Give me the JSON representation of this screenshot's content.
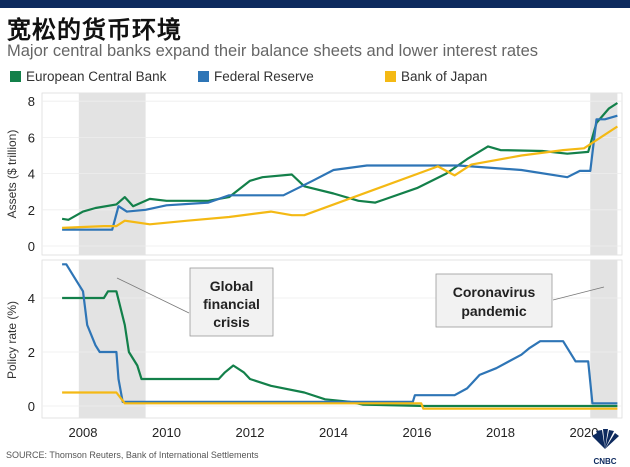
{
  "header": {
    "title": "宽松的货币环境",
    "subtitle": "Major central banks expand their balance sheets and lower interest rates"
  },
  "legend": [
    {
      "label": "European Central Bank",
      "color": "#13804a"
    },
    {
      "label": "Federal Reserve",
      "color": "#2e75b6"
    },
    {
      "label": "Bank of Japan",
      "color": "#f4b914"
    }
  ],
  "source": "SOURCE: Thomson Reuters, Bank of International Settlements",
  "logo": "CNBC",
  "chart_data": [
    {
      "type": "line",
      "ylabel": "Assets ($ trillion)",
      "ylim": [
        0,
        8
      ],
      "yticks": [
        "0",
        "2",
        "4",
        "6",
        "8"
      ],
      "xlim": [
        2007,
        2021
      ],
      "xticks": [
        "2008",
        "2010",
        "2012",
        "2014",
        "2016",
        "2018",
        "2020"
      ],
      "grid": true,
      "shaded_periods": [
        [
          2007.9,
          2009.5
        ],
        [
          2020.15,
          2020.8
        ]
      ],
      "series": [
        {
          "name": "European Central Bank",
          "color": "#13804a",
          "points": [
            [
              2007.5,
              1.5
            ],
            [
              2007.65,
              1.45
            ],
            [
              2008,
              1.9
            ],
            [
              2008.3,
              2.1
            ],
            [
              2008.8,
              2.3
            ],
            [
              2009,
              2.7
            ],
            [
              2009.2,
              2.2
            ],
            [
              2009.6,
              2.6
            ],
            [
              2010,
              2.5
            ],
            [
              2011,
              2.5
            ],
            [
              2011.5,
              2.7
            ],
            [
              2012,
              3.6
            ],
            [
              2012.3,
              3.8
            ],
            [
              2013,
              3.95
            ],
            [
              2013.3,
              3.3
            ],
            [
              2014,
              2.9
            ],
            [
              2014.6,
              2.5
            ],
            [
              2015,
              2.4
            ],
            [
              2016,
              3.2
            ],
            [
              2016.7,
              4.0
            ],
            [
              2017.2,
              4.8
            ],
            [
              2017.7,
              5.5
            ],
            [
              2018,
              5.3
            ],
            [
              2019,
              5.25
            ],
            [
              2019.6,
              5.1
            ],
            [
              2020.1,
              5.2
            ],
            [
              2020.3,
              6.8
            ],
            [
              2020.6,
              7.6
            ],
            [
              2020.8,
              7.9
            ]
          ]
        },
        {
          "name": "Federal Reserve",
          "color": "#2e75b6",
          "points": [
            [
              2007.5,
              0.9
            ],
            [
              2008.7,
              0.9
            ],
            [
              2008.85,
              2.2
            ],
            [
              2009.05,
              1.9
            ],
            [
              2009.5,
              2.0
            ],
            [
              2010,
              2.25
            ],
            [
              2011,
              2.4
            ],
            [
              2011.5,
              2.8
            ],
            [
              2012.8,
              2.8
            ],
            [
              2013.5,
              3.6
            ],
            [
              2014,
              4.2
            ],
            [
              2014.8,
              4.45
            ],
            [
              2017,
              4.45
            ],
            [
              2018.5,
              4.2
            ],
            [
              2019.6,
              3.8
            ],
            [
              2019.9,
              4.15
            ],
            [
              2020.15,
              4.15
            ],
            [
              2020.3,
              7.0
            ],
            [
              2020.5,
              7.0
            ],
            [
              2020.8,
              7.2
            ]
          ]
        },
        {
          "name": "Bank of Japan",
          "color": "#f4b914",
          "points": [
            [
              2007.5,
              1.0
            ],
            [
              2008.5,
              1.1
            ],
            [
              2008.8,
              1.1
            ],
            [
              2009,
              1.4
            ],
            [
              2009.6,
              1.2
            ],
            [
              2010.5,
              1.4
            ],
            [
              2011.5,
              1.6
            ],
            [
              2012.5,
              1.9
            ],
            [
              2013,
              1.7
            ],
            [
              2013.3,
              1.7
            ],
            [
              2016.5,
              4.4
            ],
            [
              2016.9,
              3.9
            ],
            [
              2017.3,
              4.5
            ],
            [
              2018.5,
              5.0
            ],
            [
              2019.5,
              5.3
            ],
            [
              2020,
              5.4
            ],
            [
              2020.8,
              6.6
            ]
          ]
        }
      ]
    },
    {
      "type": "line",
      "ylabel": "Policy rate (%)",
      "ylim": [
        -0.3,
        5.5
      ],
      "yticks": [
        "0",
        "2",
        "4"
      ],
      "xlim": [
        2007,
        2021
      ],
      "xticks": [
        "2008",
        "2010",
        "2012",
        "2014",
        "2016",
        "2018",
        "2020"
      ],
      "grid": true,
      "shaded_periods": [
        [
          2007.9,
          2009.5
        ],
        [
          2020.15,
          2020.8
        ]
      ],
      "annotations": [
        "Global financial crisis",
        "Coronavirus pandemic"
      ],
      "series": [
        {
          "name": "European Central Bank",
          "color": "#13804a",
          "points": [
            [
              2007.5,
              4.0
            ],
            [
              2008.5,
              4.0
            ],
            [
              2008.6,
              4.25
            ],
            [
              2008.8,
              4.25
            ],
            [
              2009,
              3.0
            ],
            [
              2009.1,
              2.0
            ],
            [
              2009.3,
              1.5
            ],
            [
              2009.4,
              1.0
            ],
            [
              2011.25,
              1.0
            ],
            [
              2011.4,
              1.25
            ],
            [
              2011.6,
              1.5
            ],
            [
              2011.85,
              1.25
            ],
            [
              2012,
              1.0
            ],
            [
              2012.5,
              0.75
            ],
            [
              2013.3,
              0.5
            ],
            [
              2013.8,
              0.25
            ],
            [
              2014.4,
              0.15
            ],
            [
              2014.7,
              0.05
            ],
            [
              2016.2,
              0.0
            ],
            [
              2020.8,
              0.0
            ]
          ]
        },
        {
          "name": "Federal Reserve",
          "color": "#2e75b6",
          "points": [
            [
              2007.5,
              5.25
            ],
            [
              2007.6,
              5.25
            ],
            [
              2007.8,
              4.75
            ],
            [
              2008,
              4.25
            ],
            [
              2008.1,
              3.0
            ],
            [
              2008.3,
              2.25
            ],
            [
              2008.4,
              2.0
            ],
            [
              2008.8,
              2.0
            ],
            [
              2008.85,
              1.0
            ],
            [
              2008.95,
              0.15
            ],
            [
              2015.9,
              0.15
            ],
            [
              2015.95,
              0.4
            ],
            [
              2016.9,
              0.4
            ],
            [
              2017.2,
              0.65
            ],
            [
              2017.5,
              1.15
            ],
            [
              2017.9,
              1.4
            ],
            [
              2018.2,
              1.65
            ],
            [
              2018.5,
              1.9
            ],
            [
              2018.7,
              2.15
            ],
            [
              2018.95,
              2.4
            ],
            [
              2019.5,
              2.4
            ],
            [
              2019.8,
              1.65
            ],
            [
              2020.1,
              1.65
            ],
            [
              2020.2,
              0.1
            ],
            [
              2020.8,
              0.1
            ]
          ]
        },
        {
          "name": "Bank of Japan",
          "color": "#f4b914",
          "points": [
            [
              2007.5,
              0.5
            ],
            [
              2008.8,
              0.5
            ],
            [
              2008.9,
              0.3
            ],
            [
              2009,
              0.1
            ],
            [
              2016.1,
              0.1
            ],
            [
              2016.15,
              -0.1
            ],
            [
              2020.8,
              -0.1
            ]
          ]
        }
      ]
    }
  ]
}
